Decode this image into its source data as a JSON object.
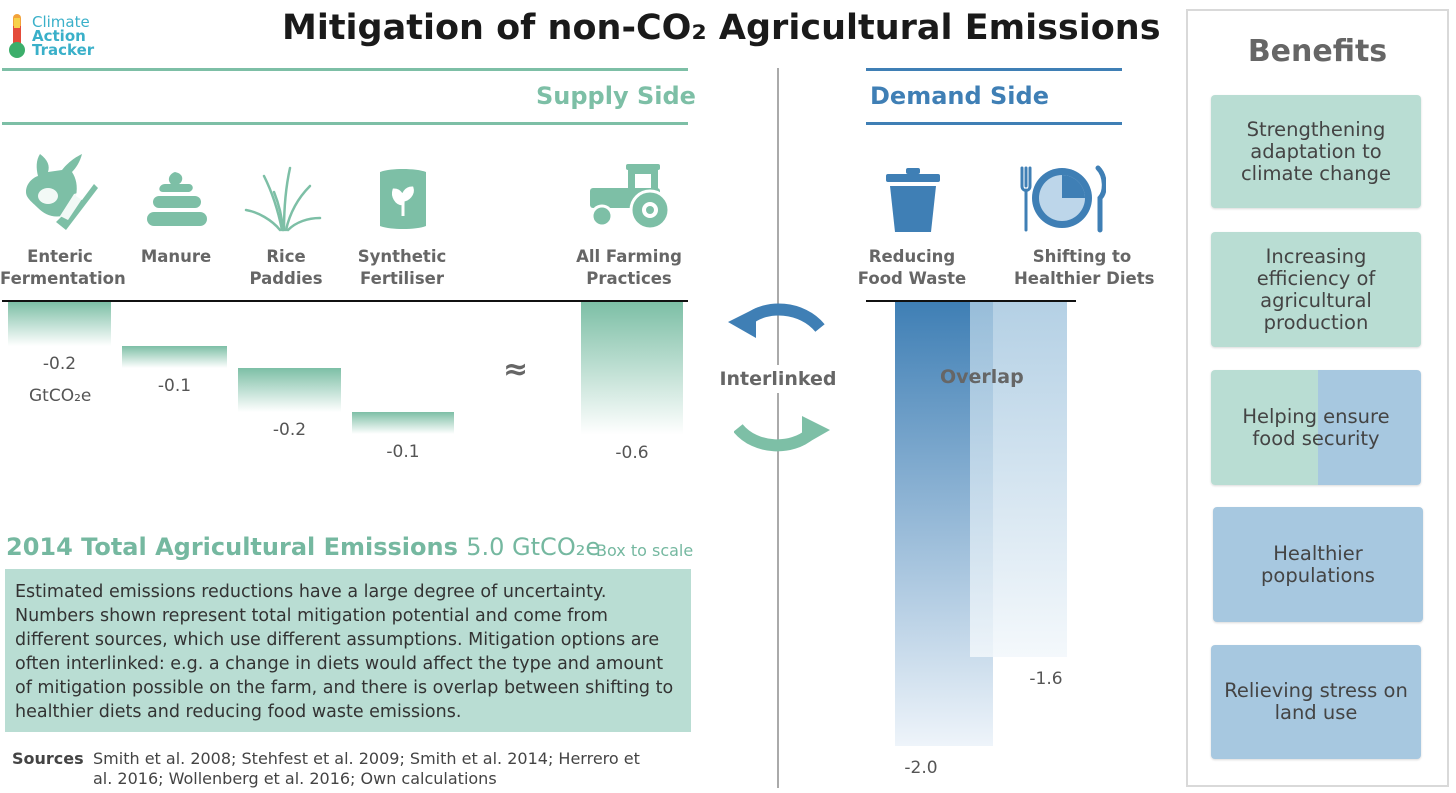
{
  "logo": {
    "line1": "Climate",
    "line2": "Action",
    "line3": "Tracker"
  },
  "title": "Mitigation of non-CO₂ Agricultural Emissions",
  "supply": {
    "heading": "Supply Side",
    "icons": [
      "cow-icon",
      "manure-icon",
      "rice-plant-icon",
      "fertiliser-bag-icon",
      "tractor-icon"
    ]
  },
  "demand": {
    "heading": "Demand Side",
    "icons": [
      "trash-bin-icon",
      "plate-cutlery-icon"
    ]
  },
  "approx_symbol": "≈",
  "interlinked": "Interlinked",
  "overlap": "Overlap",
  "unit_label": "GtCO₂e",
  "chart_data": {
    "type": "bar",
    "title": "Mitigation of non-CO₂ Agricultural Emissions",
    "unit": "GtCO₂e",
    "supply_side": {
      "categories": [
        "Enteric Fermentation",
        "Manure",
        "Rice Paddies",
        "Synthetic Fertiliser",
        "All Farming Practices"
      ],
      "values": [
        -0.2,
        -0.1,
        -0.2,
        -0.1,
        -0.6
      ],
      "value_labels": [
        "-0.2",
        "-0.1",
        "-0.2",
        "-0.1",
        "-0.6"
      ],
      "bar_type": "waterfall",
      "note": "sum ≈ All Farming Practices"
    },
    "demand_side": {
      "categories": [
        "Reducing Food Waste",
        "Shifting to Healthier Diets"
      ],
      "values": [
        -2.0,
        -1.6
      ],
      "value_labels": [
        "-2.0",
        "-1.6"
      ],
      "overlap_label": "Overlap"
    },
    "colors": {
      "supply": "#7dbfa6",
      "demand": "#3f7fb5",
      "demand_light": "#a7c8e0"
    }
  },
  "labels": {
    "enteric": [
      "Enteric",
      "Fermentation"
    ],
    "manure": [
      "Manure"
    ],
    "rice": [
      "Rice",
      "Paddies"
    ],
    "fertiliser": [
      "Synthetic",
      "Fertiliser"
    ],
    "all_farming": [
      "All Farming",
      "Practices"
    ],
    "food_waste": [
      "Reducing",
      "Food Waste"
    ],
    "diets": [
      "Shifting to",
      "Healthier Diets"
    ]
  },
  "totals": {
    "title": "2014 Total Agricultural Emissions",
    "value": "5.0 GtCO₂e",
    "box_note": "Box to scale"
  },
  "note": "Estimated emissions reductions have a large degree of uncertainty. Numbers shown represent total mitigation potential and come from different sources, which use different assumptions. Mitigation options are often interlinked: e.g. a change in diets would affect the type and amount of mitigation possible on the farm, and there is overlap between shifting to healthier diets and reducing food waste emissions.",
  "sources": {
    "label": "Sources",
    "text": "Smith et al. 2008; Stehfest et al. 2009; Smith et al. 2014; Herrero et al. 2016; Wollenberg et al. 2016; Own calculations"
  },
  "benefits": {
    "title": "Benefits",
    "items": [
      {
        "label": "Strengthening adaptation to climate change",
        "style": "green"
      },
      {
        "label": "Increasing efficiency of agricultural production",
        "style": "green"
      },
      {
        "label": "Helping ensure food security",
        "style": "split"
      },
      {
        "label": "Healthier populations",
        "style": "blue"
      },
      {
        "label": "Relieving stress on land use",
        "style": "blue"
      }
    ]
  }
}
